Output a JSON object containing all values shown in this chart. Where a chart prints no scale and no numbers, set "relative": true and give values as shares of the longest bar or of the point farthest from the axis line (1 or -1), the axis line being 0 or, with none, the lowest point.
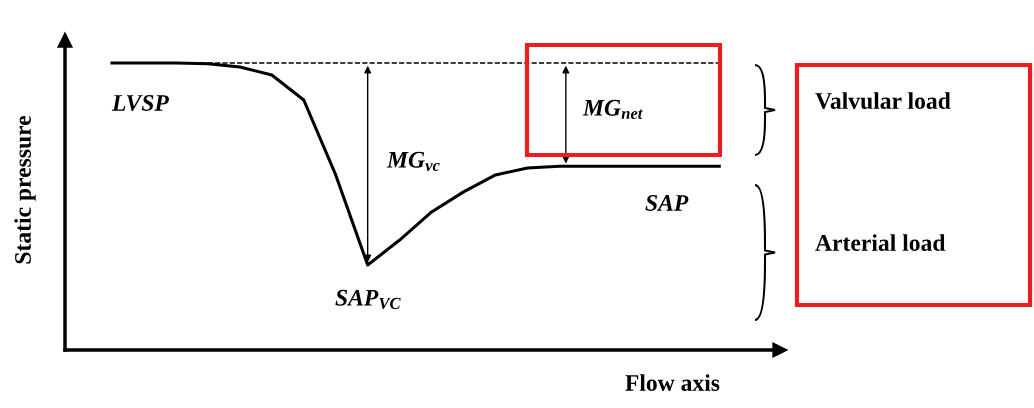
{
  "chart_data": {
    "type": "line",
    "xlabel": "Flow axis",
    "ylabel": "Static pressure",
    "relative": true,
    "categories": [
      null,
      null,
      null,
      null,
      null,
      null,
      null,
      null,
      null,
      null,
      null,
      null,
      null,
      null,
      null,
      null,
      null,
      null,
      null,
      null
    ],
    "series": [
      {
        "color": "#000000",
        "line_style": "solid",
        "values": [
          1.0,
          1.0,
          1.0,
          0.997,
          0.986,
          0.958,
          0.871,
          0.61,
          0.296,
          0.383,
          0.481,
          0.551,
          0.61,
          0.634,
          0.64,
          0.64,
          0.64,
          0.64,
          0.64,
          0.64
        ]
      }
    ],
    "ref_lines": [
      {
        "axis": "y",
        "value": 1.0,
        "color": "#000000",
        "line_style": "dashed"
      }
    ],
    "annotations": [
      "LVSP",
      "SAP",
      "SAP$_{VC}$",
      "MG$_{vc}$",
      "MG$_{net}$",
      "Valvular load",
      "Arterial load"
    ]
  }
}
